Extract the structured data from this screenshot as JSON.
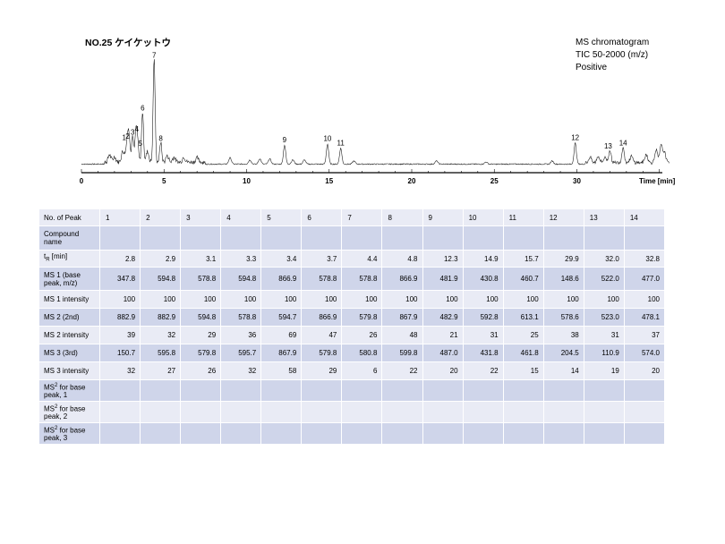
{
  "title": "NO.25 ケイケットウ",
  "info": [
    "MS chromatogram",
    "TIC 50-2000 (m/z)",
    "Positive"
  ],
  "chart_data": {
    "type": "line",
    "title": "",
    "xlabel": "Time [min]",
    "xticks": [
      0,
      5,
      10,
      15,
      20,
      25,
      30
    ],
    "xlim": [
      0,
      35.5
    ],
    "peaks": [
      {
        "label": "1",
        "t": 2.8,
        "h": 0.2
      },
      {
        "label": "2",
        "t": 2.9,
        "h": 0.21
      },
      {
        "label": "3",
        "t": 3.1,
        "h": 0.25
      },
      {
        "label": "4",
        "t": 3.3,
        "h": 0.28
      },
      {
        "label": "5",
        "t": 3.4,
        "h": 0.18
      },
      {
        "label": "6",
        "t": 3.7,
        "h": 0.48
      },
      {
        "label": "7",
        "t": 4.4,
        "h": 0.98
      },
      {
        "label": "8",
        "t": 4.8,
        "h": 0.19
      },
      {
        "label": "9",
        "t": 12.3,
        "h": 0.18
      },
      {
        "label": "10",
        "t": 14.9,
        "h": 0.19
      },
      {
        "label": "11",
        "t": 15.7,
        "h": 0.15
      },
      {
        "label": "12",
        "t": 29.9,
        "h": 0.2
      },
      {
        "label": "13",
        "t": 32.0,
        "h": 0.12
      },
      {
        "label": "14",
        "t": 32.8,
        "h": 0.15
      }
    ]
  },
  "table": {
    "row_labels": {
      "peak": "No. of Peak",
      "compound": "Compound name",
      "tr_pre": "t",
      "tr_sub": "R",
      "tr_post": " [min]",
      "ms1": "MS 1 (base peak, m/z)",
      "ms1i": "MS 1 intensity",
      "ms2": "MS 2 (2nd)",
      "ms2i": "MS 2 intensity",
      "ms3": "MS 3 (3rd)",
      "ms3i": "MS 3 intensity",
      "msb_pre": "MS",
      "msb_sup": "2",
      "msb1_post": " for base peak, 1",
      "msb2_post": " for base peak, 2",
      "msb3_post": " for base peak, 3"
    },
    "peak": [
      "1",
      "2",
      "3",
      "4",
      "5",
      "6",
      "7",
      "8",
      "9",
      "10",
      "11",
      "12",
      "13",
      "14"
    ],
    "tr": [
      "2.8",
      "2.9",
      "3.1",
      "3.3",
      "3.4",
      "3.7",
      "4.4",
      "4.8",
      "12.3",
      "14.9",
      "15.7",
      "29.9",
      "32.0",
      "32.8"
    ],
    "ms1": [
      "347.8",
      "594.8",
      "578.8",
      "594.8",
      "866.9",
      "578.8",
      "578.8",
      "866.9",
      "481.9",
      "430.8",
      "460.7",
      "148.6",
      "522.0",
      "477.0"
    ],
    "ms1i": [
      "100",
      "100",
      "100",
      "100",
      "100",
      "100",
      "100",
      "100",
      "100",
      "100",
      "100",
      "100",
      "100",
      "100"
    ],
    "ms2": [
      "882.9",
      "882.9",
      "594.8",
      "578.8",
      "594.7",
      "866.9",
      "579.8",
      "867.9",
      "482.9",
      "592.8",
      "613.1",
      "578.6",
      "523.0",
      "478.1"
    ],
    "ms2i": [
      "39",
      "32",
      "29",
      "36",
      "69",
      "47",
      "26",
      "48",
      "21",
      "31",
      "25",
      "38",
      "31",
      "37"
    ],
    "ms3": [
      "150.7",
      "595.8",
      "579.8",
      "595.7",
      "867.9",
      "579.8",
      "580.8",
      "599.8",
      "487.0",
      "431.8",
      "461.8",
      "204.5",
      "110.9",
      "574.0"
    ],
    "ms3i": [
      "32",
      "27",
      "26",
      "32",
      "58",
      "29",
      "6",
      "22",
      "20",
      "22",
      "15",
      "14",
      "19",
      "20"
    ]
  }
}
